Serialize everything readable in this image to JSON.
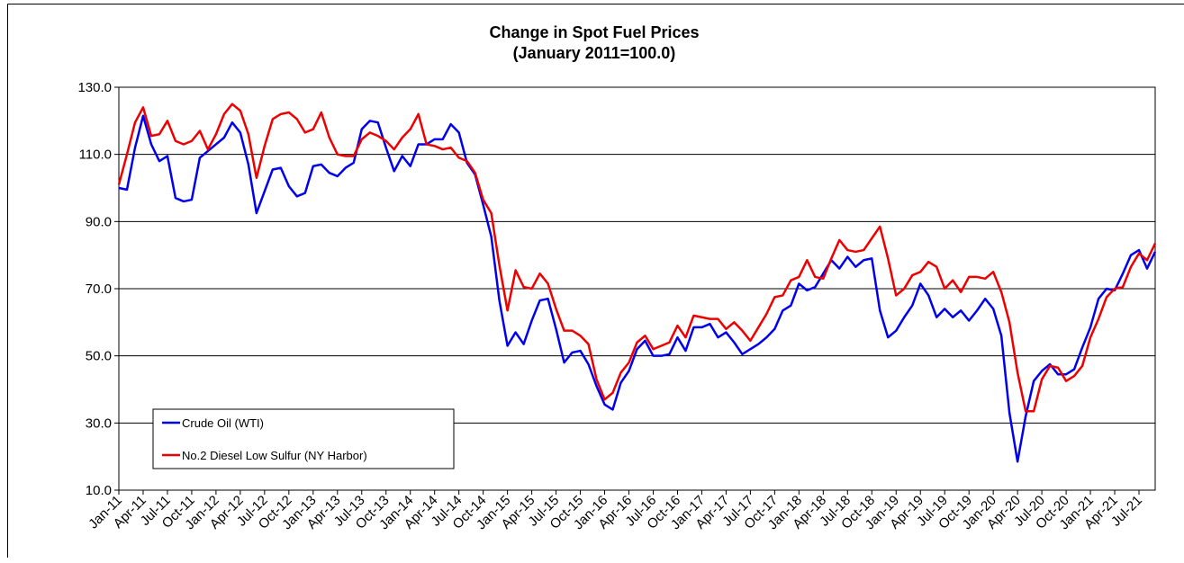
{
  "chart_data": {
    "type": "line",
    "title": "Change in Spot Fuel Prices",
    "subtitle": "(January 2011=100.0)",
    "categories": [
      "Jan-11",
      null,
      null,
      "Apr-11",
      null,
      null,
      "Jul-11",
      null,
      null,
      "Oct-11",
      null,
      null,
      "Jan-12",
      null,
      null,
      "Apr-12",
      null,
      null,
      "Jul-12",
      null,
      null,
      "Oct-12",
      null,
      null,
      "Jan-13",
      null,
      null,
      "Apr-13",
      null,
      null,
      "Jul-13",
      null,
      null,
      "Oct-13",
      null,
      null,
      "Jan-14",
      null,
      null,
      "Apr-14",
      null,
      null,
      "Jul-14",
      null,
      null,
      "Oct-14",
      null,
      null,
      "Jan-15",
      null,
      null,
      "Apr-15",
      null,
      null,
      "Jul-15",
      null,
      null,
      "Oct-15",
      null,
      null,
      "Jan-16",
      null,
      null,
      "Apr-16",
      null,
      null,
      "Jul-16",
      null,
      null,
      "Oct-16",
      null,
      null,
      "Jan-17",
      null,
      null,
      "Apr-17",
      null,
      null,
      "Jul-17",
      null,
      null,
      "Oct-17",
      null,
      null,
      "Jan-18",
      null,
      null,
      "Apr-18",
      null,
      null,
      "Jul-18",
      null,
      null,
      "Oct-18",
      null,
      null,
      "Jan-19",
      null,
      null,
      "Apr-19",
      null,
      null,
      "Jul-19",
      null,
      null,
      "Oct-19",
      null,
      null,
      "Jan-20",
      null,
      null,
      "Apr-20",
      null,
      null,
      "Jul-20",
      null,
      null,
      "Oct-20",
      null,
      null,
      "Jan-21",
      null,
      null,
      "Apr-21",
      null,
      null,
      "Jul-21",
      null,
      null
    ],
    "series": [
      {
        "name": "Crude Oil (WTI)",
        "color": "#0000ee",
        "values": [
          100,
          99.5,
          112,
          121.5,
          113,
          108,
          109.5,
          97,
          96,
          96.5,
          109,
          111,
          113,
          115,
          119.5,
          116.5,
          107,
          92.5,
          99,
          105.5,
          106,
          100.5,
          97.5,
          98.5,
          106.5,
          107,
          104.5,
          103.5,
          106,
          107.5,
          117.5,
          120,
          119.5,
          112,
          105,
          109.5,
          106.5,
          113,
          113,
          114.5,
          114.5,
          119,
          116.5,
          107.5,
          104,
          95,
          85.5,
          66.5,
          53,
          57,
          53.5,
          60.5,
          66.5,
          67,
          58,
          48,
          51,
          51.5,
          47.5,
          41,
          35.5,
          34,
          42,
          45.5,
          52,
          54.5,
          50,
          50,
          50.5,
          55.5,
          51.5,
          58.5,
          58.5,
          59.5,
          55.5,
          57,
          54,
          50.5,
          52,
          53.5,
          55.5,
          58,
          63.5,
          65,
          71.5,
          69.5,
          70.5,
          74.5,
          78.5,
          76,
          79.5,
          76.5,
          78.5,
          79,
          63.5,
          55.5,
          57.5,
          61.5,
          65,
          71.5,
          68,
          61.5,
          64,
          61.5,
          63.5,
          60.5,
          63.5,
          67,
          64,
          56,
          33,
          18.5,
          32,
          42.5,
          45.5,
          47.5,
          44.5,
          44.5,
          46,
          52.5,
          58.5,
          67,
          70,
          69.5,
          74.5,
          80,
          81.5,
          76,
          81
        ]
      },
      {
        "name": "No.2 Diesel Low Sulfur (NY Harbor)",
        "color": "#ee0000",
        "values": [
          101,
          110,
          119.5,
          124,
          115.5,
          116,
          120,
          114,
          113,
          114,
          117,
          111.5,
          116,
          122,
          125,
          123,
          116,
          103,
          112.5,
          120.5,
          122,
          122.5,
          120.5,
          116.5,
          117.5,
          122.5,
          115,
          110,
          109.5,
          109.5,
          114.5,
          116.5,
          115.5,
          114,
          111.5,
          115,
          117.5,
          122,
          113,
          112.5,
          111.5,
          112,
          109,
          108,
          104.5,
          96.5,
          92.5,
          77,
          63.5,
          75.5,
          70.5,
          70,
          74.5,
          71.5,
          64,
          57.5,
          57.5,
          56,
          53.5,
          43,
          37,
          39,
          45,
          48,
          54,
          56,
          52,
          53,
          54,
          59,
          55.5,
          62,
          61.5,
          61,
          61,
          58,
          60,
          57.5,
          54.5,
          58.5,
          62.5,
          67.5,
          68,
          72.5,
          73.5,
          78.5,
          73.5,
          73,
          79,
          84.5,
          81.5,
          81,
          81.5,
          85,
          88.5,
          79,
          68,
          70,
          74,
          75,
          78,
          76.5,
          70,
          72.5,
          69,
          73.5,
          73.5,
          73,
          75,
          69,
          60,
          45,
          33.5,
          33.5,
          43,
          47,
          46.5,
          42.5,
          44,
          47,
          55.5,
          61,
          67.5,
          70,
          70.5,
          76.5,
          80.5,
          78.5,
          83.5
        ]
      }
    ],
    "ylim": [
      10,
      130
    ],
    "yticks": [
      {
        "value": 10,
        "label": "10.0"
      },
      {
        "value": 30,
        "label": "30.0"
      },
      {
        "value": 50,
        "label": "50.0"
      },
      {
        "value": 70,
        "label": "70.0"
      },
      {
        "value": 90,
        "label": "90.0"
      },
      {
        "value": 110,
        "label": "110.0"
      },
      {
        "value": 130,
        "label": "130.0"
      }
    ],
    "grid": true,
    "legend": "lower left"
  }
}
